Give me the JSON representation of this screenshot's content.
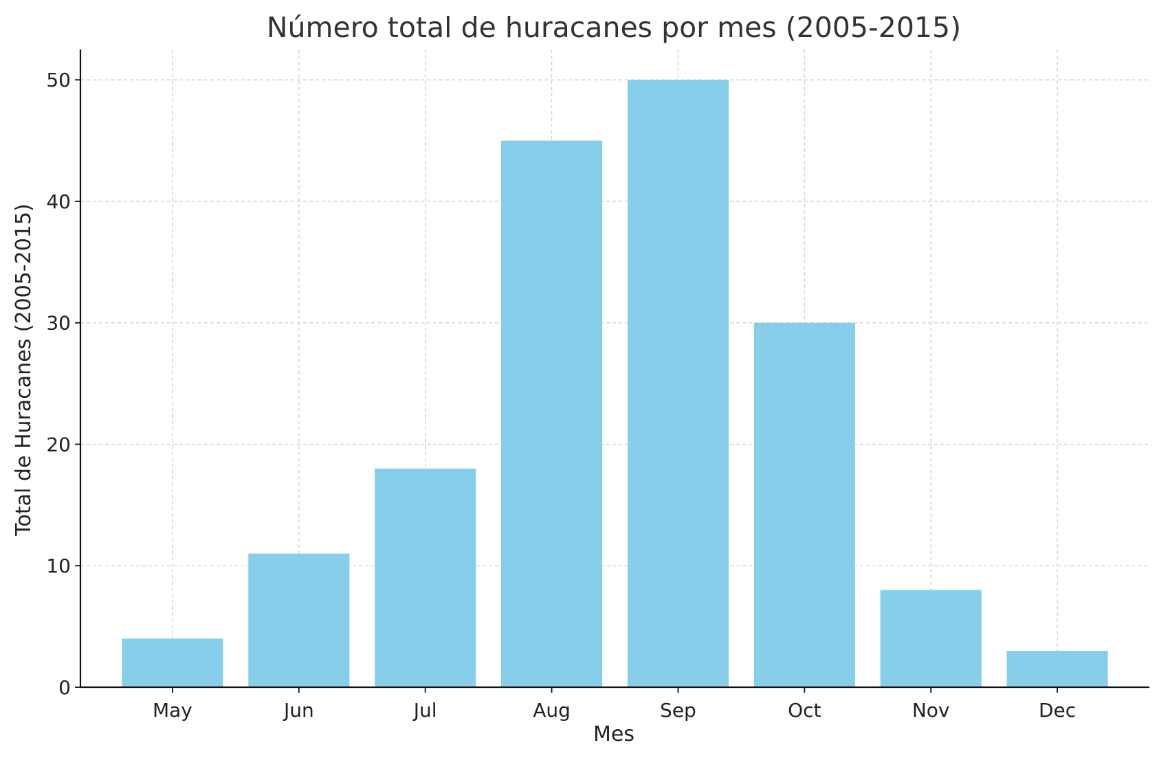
{
  "chart_data": {
    "type": "bar",
    "title": "Número total de huracanes por mes (2005-2015)",
    "xlabel": "Mes",
    "ylabel": "Total de Huracanes (2005-2015)",
    "categories": [
      "May",
      "Jun",
      "Jul",
      "Aug",
      "Sep",
      "Oct",
      "Nov",
      "Dec"
    ],
    "values": [
      4,
      11,
      18,
      45,
      50,
      30,
      8,
      3
    ],
    "ylim": [
      0,
      52.5
    ],
    "yticks": [
      0,
      10,
      20,
      30,
      40,
      50
    ],
    "grid": true,
    "bar_color": "#87CEEB"
  }
}
